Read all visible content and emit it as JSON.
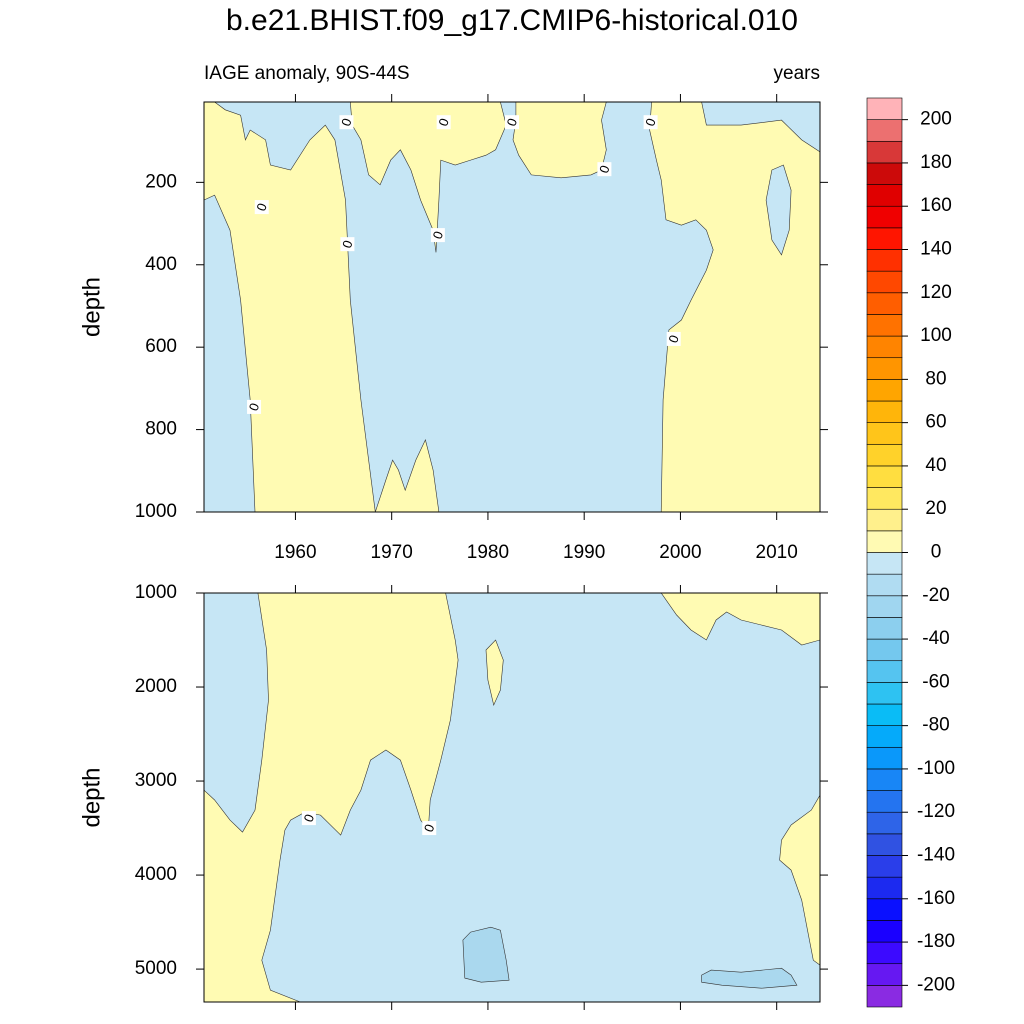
{
  "chart_data": {
    "type": "contour",
    "title": "b.e21.BHIST.f09_g17.CMIP6-historical.010",
    "panels": [
      {
        "subtitle_left": "IAGE anomaly, 90S-44S",
        "subtitle_right": "years",
        "ylabel": "depth",
        "xlim": [
          1950.5,
          2014.5
        ],
        "ylim": [
          5,
          1000
        ],
        "reverse_y": true,
        "xticks": [
          1960,
          1970,
          1980,
          1990,
          2000,
          2010
        ],
        "xtick_labels": true,
        "yticks": [
          200,
          400,
          600,
          800,
          1000
        ],
        "base_color": "#c6e6f5",
        "regions": [
          {
            "color": "#fffbb3",
            "points": [
              [
                1950.5,
                5
              ],
              [
                1951.6,
                5
              ],
              [
                1952.7,
                24
              ],
              [
                1954.3,
                37
              ],
              [
                1954.8,
                97
              ],
              [
                1955.3,
                73
              ],
              [
                1956.9,
                97
              ],
              [
                1957.4,
                158
              ],
              [
                1959.5,
                170
              ],
              [
                1961.5,
                97
              ],
              [
                1963.1,
                61
              ],
              [
                1964.1,
                97
              ],
              [
                1965.2,
                243
              ],
              [
                1965.7,
                486
              ],
              [
                1966.8,
                728
              ],
              [
                1968.3,
                1000
              ],
              [
                1955.8,
                1000
              ],
              [
                1955.3,
                728
              ],
              [
                1954.3,
                486
              ],
              [
                1953.2,
                316
              ],
              [
                1951.6,
                231
              ],
              [
                1950.5,
                243
              ]
            ]
          },
          {
            "color": "#fffbb3",
            "points": [
              [
                1965.7,
                5
              ],
              [
                1981.3,
                5
              ],
              [
                1981.9,
                61
              ],
              [
                1980.8,
                121
              ],
              [
                1979.8,
                134
              ],
              [
                1978.2,
                146
              ],
              [
                1976.6,
                158
              ],
              [
                1975.1,
                146
              ],
              [
                1974.9,
                243
              ],
              [
                1974.6,
                370
              ],
              [
                1974.3,
                316
              ],
              [
                1973.0,
                243
              ],
              [
                1972.0,
                170
              ],
              [
                1970.9,
                121
              ],
              [
                1969.9,
                146
              ],
              [
                1968.8,
                206
              ],
              [
                1967.6,
                182
              ],
              [
                1966.8,
                97
              ],
              [
                1965.9,
                61
              ]
            ]
          },
          {
            "color": "#fffbb3",
            "points": [
              [
                1982.9,
                5
              ],
              [
                1992.3,
                5
              ],
              [
                1991.8,
                49
              ],
              [
                1992.3,
                121
              ],
              [
                1991.8,
                170
              ],
              [
                1990.7,
                182
              ],
              [
                1987.6,
                189
              ],
              [
                1984.5,
                182
              ],
              [
                1983.2,
                134
              ],
              [
                1982.6,
                97
              ],
              [
                1982.9,
                49
              ]
            ]
          },
          {
            "color": "#fffbb3",
            "points": [
              [
                1997.0,
                5
              ],
              [
                2002.2,
                5
              ],
              [
                2002.7,
                61
              ],
              [
                2006.3,
                61
              ],
              [
                2010.5,
                49
              ],
              [
                2012.6,
                97
              ],
              [
                2014.5,
                126
              ],
              [
                2014.5,
                1000
              ],
              [
                1998.0,
                1000
              ],
              [
                1998.2,
                728
              ],
              [
                1998.8,
                558
              ],
              [
                2000.1,
                534
              ],
              [
                2001.1,
                486
              ],
              [
                2002.7,
                413
              ],
              [
                2003.4,
                364
              ],
              [
                2002.7,
                316
              ],
              [
                2001.6,
                291
              ],
              [
                2000.1,
                304
              ],
              [
                1998.5,
                291
              ],
              [
                1998.0,
                194
              ],
              [
                1997.5,
                146
              ],
              [
                1996.8,
                73
              ]
            ]
          },
          {
            "color": "#c6e6f5",
            "points": [
              [
                2009.5,
                170
              ],
              [
                2010.7,
                158
              ],
              [
                2011.5,
                219
              ],
              [
                2011.3,
                316
              ],
              [
                2010.5,
                376
              ],
              [
                2009.5,
                340
              ],
              [
                2008.9,
                243
              ]
            ]
          },
          {
            "color": "#fffbb3",
            "points": [
              [
                1968.3,
                1000
              ],
              [
                1969.4,
                922
              ],
              [
                1970.1,
                874
              ],
              [
                1970.7,
                898
              ],
              [
                1971.4,
                947
              ],
              [
                1972.5,
                874
              ],
              [
                1973.5,
                825
              ],
              [
                1974.3,
                898
              ],
              [
                1974.9,
                1000
              ]
            ]
          }
        ],
        "contour_labels": [
          {
            "label": "0",
            "x": 1965.3,
            "y": 54
          },
          {
            "label": "0",
            "x": 1975.4,
            "y": 54
          },
          {
            "label": "0",
            "x": 1982.5,
            "y": 54
          },
          {
            "label": "0",
            "x": 1996.9,
            "y": 54
          },
          {
            "label": "0",
            "x": 1992.1,
            "y": 168
          },
          {
            "label": "0",
            "x": 1956.5,
            "y": 260
          },
          {
            "label": "0",
            "x": 1965.4,
            "y": 350
          },
          {
            "label": "0",
            "x": 1974.8,
            "y": 328
          },
          {
            "label": "0",
            "x": 1999.3,
            "y": 580
          },
          {
            "label": "0",
            "x": 1955.7,
            "y": 745
          }
        ]
      },
      {
        "ylabel": "depth",
        "xlim": [
          1950.5,
          2014.5
        ],
        "ylim": [
          1000,
          5350
        ],
        "reverse_y": true,
        "xticks": [
          1960,
          1970,
          1980,
          1990,
          2000,
          2010
        ],
        "xtick_labels": false,
        "yticks": [
          1000,
          2000,
          3000,
          4000,
          5000
        ],
        "base_color": "#c6e6f5",
        "regions": [
          {
            "color": "#fffbb3",
            "points": [
              [
                1956.1,
                1000
              ],
              [
                1975.6,
                1000
              ],
              [
                1976.6,
                1500
              ],
              [
                1976.9,
                1713
              ],
              [
                1976.1,
                2351
              ],
              [
                1975.1,
                2777
              ],
              [
                1974.0,
                3202
              ],
              [
                1973.8,
                3522
              ],
              [
                1973.0,
                3415
              ],
              [
                1972.0,
                3096
              ],
              [
                1970.9,
                2777
              ],
              [
                1969.4,
                2670
              ],
              [
                1967.8,
                2777
              ],
              [
                1966.8,
                3096
              ],
              [
                1965.7,
                3309
              ],
              [
                1964.7,
                3575
              ],
              [
                1962.6,
                3362
              ],
              [
                1961.0,
                3330
              ],
              [
                1959.5,
                3415
              ],
              [
                1958.9,
                3522
              ],
              [
                1958.4,
                3841
              ],
              [
                1957.4,
                4586
              ],
              [
                1956.5,
                4905
              ],
              [
                1957.4,
                5224
              ],
              [
                1960.5,
                5350
              ],
              [
                1950.5,
                5350
              ],
              [
                1950.5,
                3096
              ],
              [
                1951.6,
                3202
              ],
              [
                1953.2,
                3415
              ],
              [
                1954.5,
                3543
              ],
              [
                1955.8,
                3309
              ],
              [
                1956.5,
                2777
              ],
              [
                1957.2,
                2138
              ],
              [
                1957.0,
                1606
              ]
            ]
          },
          {
            "color": "#fffbb3",
            "points": [
              [
                1979.8,
                1606
              ],
              [
                1980.8,
                1500
              ],
              [
                1981.6,
                1713
              ],
              [
                1981.3,
                2032
              ],
              [
                1980.6,
                2192
              ],
              [
                1980.0,
                1926
              ]
            ]
          },
          {
            "color": "#fffbb3",
            "points": [
              [
                1998.0,
                1000
              ],
              [
                2014.5,
                1000
              ],
              [
                2014.5,
                1500
              ],
              [
                2012.6,
                1553
              ],
              [
                2010.5,
                1394
              ],
              [
                2008.4,
                1340
              ],
              [
                2006.3,
                1287
              ],
              [
                2004.8,
                1202
              ],
              [
                2003.7,
                1287
              ],
              [
                2002.7,
                1500
              ],
              [
                2001.1,
                1394
              ],
              [
                1999.6,
                1234
              ]
            ]
          },
          {
            "color": "#fffbb3",
            "points": [
              [
                2014.5,
                3149
              ],
              [
                2013.6,
                3309
              ],
              [
                2011.5,
                3468
              ],
              [
                2010.5,
                3628
              ],
              [
                2010.3,
                3841
              ],
              [
                2011.5,
                3947
              ],
              [
                2012.6,
                4266
              ],
              [
                2013.8,
                4905
              ],
              [
                2014.5,
                4958
              ]
            ]
          },
          {
            "color": "#aad8ee",
            "points": [
              [
                1977.4,
                4692
              ],
              [
                1978.2,
                4607
              ],
              [
                1980.3,
                4554
              ],
              [
                1981.3,
                4586
              ],
              [
                1981.9,
                4905
              ],
              [
                1982.2,
                5118
              ],
              [
                1979.3,
                5139
              ],
              [
                1977.6,
                5096
              ]
            ]
          },
          {
            "color": "#aad8ee",
            "points": [
              [
                2002.2,
                5064
              ],
              [
                2003.2,
                5011
              ],
              [
                2006.3,
                5033
              ],
              [
                2010.5,
                4990
              ],
              [
                2011.5,
                5064
              ],
              [
                2012.1,
                5171
              ],
              [
                2008.4,
                5203
              ],
              [
                2004.3,
                5171
              ],
              [
                2002.2,
                5139
              ]
            ]
          }
        ],
        "contour_labels": [
          {
            "label": "0",
            "x": 1961.4,
            "y": 3394
          },
          {
            "label": "0",
            "x": 1973.9,
            "y": 3500
          }
        ]
      }
    ],
    "colorbar": {
      "clim": [
        -210,
        210
      ],
      "ticks": [
        200,
        180,
        160,
        140,
        120,
        100,
        80,
        60,
        40,
        20,
        0,
        -20,
        -40,
        -60,
        -80,
        -100,
        -120,
        -140,
        -160,
        -180,
        -200
      ],
      "colors": [
        "#8a2be2",
        "#6618f2",
        "#3c0aff",
        "#1a00ff",
        "#0a10ff",
        "#1c2af0",
        "#2a3eea",
        "#3052e2",
        "#2e64e8",
        "#2474f0",
        "#1886f6",
        "#0a98fa",
        "#05aafa",
        "#0abcf6",
        "#2ec2f2",
        "#55c4f0",
        "#74c8ee",
        "#8ccfee",
        "#a0d6f0",
        "#b0dcf2",
        "#c6e6f5",
        "#fffab3",
        "#fff08c",
        "#ffe860",
        "#ffde40",
        "#ffd22a",
        "#ffc51a",
        "#ffb50a",
        "#ffa500",
        "#ff9500",
        "#ff8400",
        "#ff7200",
        "#ff5e00",
        "#ff4800",
        "#ff3000",
        "#ff1500",
        "#f00000",
        "#e00000",
        "#cc0a0a",
        "#d83838",
        "#ec7070",
        "#ffb3b8"
      ]
    }
  }
}
